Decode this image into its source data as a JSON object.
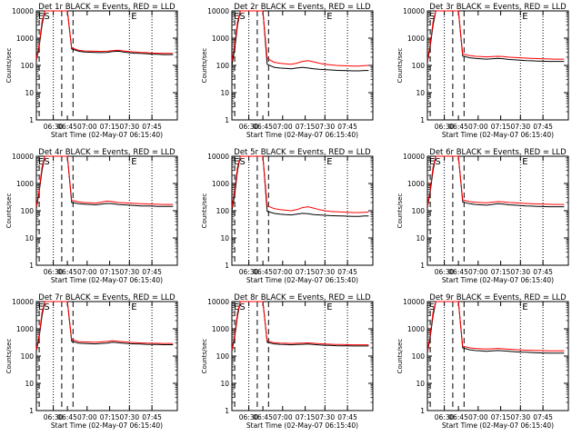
{
  "figure": {
    "panel_title_suffix": "BLACK = Events, RED = LLD",
    "xlabel": "Start Time (02-May-07 06:15:40)",
    "ylabel": "Counts/sec",
    "x_ticks": [
      "06:30",
      "06:45",
      "07:00",
      "07:15",
      "07:30",
      "07:45"
    ],
    "y_ticks": [
      "1",
      "10",
      "100",
      "1000",
      "10000"
    ],
    "marker_s": "S",
    "marker_e": "E",
    "marker_es": "ES",
    "colors": {
      "events": "#000000",
      "lld": "#ff0000",
      "axes": "#000000",
      "background": "#ffffff"
    }
  },
  "chart_data": [
    {
      "type": "line",
      "title": "Det 1r BLACK = Events, RED = LLD",
      "label": "Det 1r",
      "ylim": [
        1,
        10000
      ],
      "yscale": "log",
      "markers": "ES",
      "x": [
        0,
        2,
        4,
        6,
        8,
        10,
        14,
        18,
        22,
        25,
        30,
        34,
        38,
        42,
        46,
        50,
        54,
        58,
        62,
        66,
        70,
        74,
        78,
        82,
        86,
        90,
        94,
        97
      ],
      "series": [
        {
          "name": "Events",
          "values": [
            150,
            500,
            3000,
            10000,
            10000,
            10000,
            10000,
            10000,
            10000,
            400,
            330,
            310,
            305,
            300,
            295,
            300,
            320,
            330,
            310,
            290,
            280,
            275,
            270,
            260,
            255,
            250,
            250,
            250
          ]
        },
        {
          "name": "LLD",
          "values": [
            170,
            600,
            4000,
            10000,
            10000,
            10000,
            10000,
            10000,
            10000,
            440,
            360,
            340,
            335,
            330,
            325,
            330,
            350,
            360,
            340,
            320,
            310,
            300,
            295,
            285,
            280,
            275,
            275,
            275
          ]
        }
      ]
    },
    {
      "type": "line",
      "title": "Det 2r BLACK = Events, RED = LLD",
      "label": "Det 2r",
      "ylim": [
        1,
        10000
      ],
      "yscale": "log",
      "markers": "ES",
      "x": [
        0,
        2,
        4,
        6,
        8,
        10,
        14,
        18,
        22,
        25,
        30,
        34,
        38,
        42,
        46,
        50,
        54,
        58,
        62,
        66,
        70,
        74,
        78,
        82,
        86,
        90,
        94,
        97
      ],
      "series": [
        {
          "name": "Events",
          "values": [
            100,
            400,
            3000,
            10000,
            10000,
            10000,
            10000,
            10000,
            10000,
            110,
            85,
            80,
            78,
            75,
            80,
            85,
            80,
            75,
            72,
            70,
            68,
            66,
            65,
            64,
            63,
            63,
            65,
            65
          ]
        },
        {
          "name": "LLD",
          "values": [
            140,
            600,
            4000,
            10000,
            10000,
            10000,
            10000,
            10000,
            10000,
            180,
            130,
            120,
            115,
            110,
            120,
            140,
            150,
            135,
            120,
            110,
            105,
            100,
            98,
            96,
            95,
            95,
            98,
            100
          ]
        }
      ]
    },
    {
      "type": "line",
      "title": "Det 3r BLACK = Events, RED = LLD",
      "label": "Det 3r",
      "ylim": [
        1,
        10000
      ],
      "yscale": "log",
      "markers": "S",
      "x": [
        0,
        2,
        4,
        6,
        8,
        10,
        14,
        18,
        22,
        25,
        30,
        34,
        38,
        42,
        46,
        50,
        54,
        58,
        62,
        66,
        70,
        74,
        78,
        82,
        86,
        90,
        94,
        97
      ],
      "series": [
        {
          "name": "Events",
          "values": [
            130,
            500,
            3000,
            10000,
            10000,
            10000,
            10000,
            10000,
            10000,
            220,
            190,
            180,
            175,
            170,
            175,
            180,
            175,
            165,
            160,
            155,
            150,
            148,
            145,
            142,
            140,
            140,
            140,
            140
          ]
        },
        {
          "name": "LLD",
          "values": [
            150,
            600,
            4000,
            10000,
            10000,
            10000,
            10000,
            10000,
            10000,
            260,
            230,
            215,
            210,
            205,
            210,
            215,
            210,
            200,
            195,
            190,
            185,
            180,
            178,
            175,
            172,
            170,
            170,
            170
          ]
        }
      ]
    },
    {
      "type": "line",
      "title": "Det 4r BLACK = Events, RED = LLD",
      "label": "Det 4r",
      "ylim": [
        1,
        10000
      ],
      "yscale": "log",
      "markers": "ES",
      "x": [
        0,
        2,
        4,
        6,
        8,
        10,
        14,
        18,
        22,
        25,
        30,
        34,
        38,
        42,
        46,
        50,
        54,
        58,
        62,
        66,
        70,
        74,
        78,
        82,
        86,
        90,
        94,
        97
      ],
      "series": [
        {
          "name": "Events",
          "values": [
            120,
            500,
            3000,
            10000,
            10000,
            10000,
            10000,
            10000,
            10000,
            200,
            180,
            175,
            170,
            165,
            175,
            185,
            180,
            170,
            165,
            160,
            155,
            150,
            150,
            148,
            145,
            145,
            145,
            145
          ]
        },
        {
          "name": "LLD",
          "values": [
            140,
            600,
            4000,
            10000,
            10000,
            10000,
            10000,
            10000,
            10000,
            240,
            210,
            200,
            195,
            190,
            205,
            225,
            215,
            200,
            195,
            190,
            185,
            180,
            178,
            175,
            172,
            170,
            170,
            170
          ]
        }
      ]
    },
    {
      "type": "line",
      "title": "Det 5r BLACK = Events, RED = LLD",
      "label": "Det 5r",
      "ylim": [
        1,
        10000
      ],
      "yscale": "log",
      "markers": "ES",
      "x": [
        0,
        2,
        4,
        6,
        8,
        10,
        14,
        18,
        22,
        25,
        30,
        34,
        38,
        42,
        46,
        50,
        54,
        58,
        62,
        66,
        70,
        74,
        78,
        82,
        86,
        90,
        94,
        97
      ],
      "series": [
        {
          "name": "Events",
          "values": [
            100,
            400,
            3000,
            10000,
            10000,
            10000,
            10000,
            10000,
            10000,
            95,
            80,
            75,
            72,
            70,
            75,
            80,
            78,
            72,
            70,
            68,
            66,
            65,
            64,
            63,
            62,
            62,
            64,
            64
          ]
        },
        {
          "name": "LLD",
          "values": [
            130,
            600,
            4000,
            10000,
            10000,
            10000,
            10000,
            10000,
            10000,
            150,
            120,
            110,
            105,
            100,
            110,
            130,
            140,
            125,
            110,
            100,
            95,
            92,
            90,
            88,
            86,
            86,
            88,
            90
          ]
        }
      ]
    },
    {
      "type": "line",
      "title": "Det 6r BLACK = Events, RED = LLD",
      "label": "Det 6r",
      "ylim": [
        1,
        10000
      ],
      "yscale": "log",
      "markers": "ES",
      "x": [
        0,
        2,
        4,
        6,
        8,
        10,
        14,
        18,
        22,
        25,
        30,
        34,
        38,
        42,
        46,
        50,
        54,
        58,
        62,
        66,
        70,
        74,
        78,
        82,
        86,
        90,
        94,
        97
      ],
      "series": [
        {
          "name": "Events",
          "values": [
            130,
            500,
            3000,
            10000,
            10000,
            10000,
            10000,
            10000,
            10000,
            210,
            180,
            170,
            165,
            160,
            170,
            180,
            175,
            165,
            160,
            155,
            150,
            148,
            145,
            142,
            140,
            140,
            140,
            140
          ]
        },
        {
          "name": "LLD",
          "values": [
            150,
            600,
            4000,
            10000,
            10000,
            10000,
            10000,
            10000,
            10000,
            250,
            215,
            205,
            200,
            195,
            205,
            215,
            210,
            200,
            195,
            190,
            185,
            180,
            178,
            175,
            172,
            170,
            170,
            170
          ]
        }
      ]
    },
    {
      "type": "line",
      "title": "Det 7r BLACK = Events, RED = LLD",
      "label": "Det 7r",
      "ylim": [
        1,
        10000
      ],
      "yscale": "log",
      "markers": "ES",
      "x": [
        0,
        2,
        4,
        6,
        8,
        10,
        14,
        18,
        22,
        25,
        30,
        34,
        38,
        42,
        46,
        50,
        54,
        58,
        62,
        66,
        70,
        74,
        78,
        82,
        86,
        90,
        94,
        97
      ],
      "series": [
        {
          "name": "Events",
          "values": [
            150,
            500,
            3000,
            10000,
            10000,
            10000,
            10000,
            10000,
            10000,
            350,
            300,
            290,
            285,
            280,
            290,
            300,
            320,
            310,
            295,
            285,
            280,
            275,
            270,
            268,
            265,
            262,
            262,
            262
          ]
        },
        {
          "name": "LLD",
          "values": [
            170,
            600,
            4000,
            10000,
            10000,
            10000,
            10000,
            10000,
            10000,
            400,
            340,
            330,
            325,
            320,
            330,
            345,
            365,
            350,
            335,
            320,
            312,
            305,
            300,
            296,
            292,
            290,
            290,
            290
          ]
        }
      ]
    },
    {
      "type": "line",
      "title": "Det 8r BLACK = Events, RED = LLD",
      "label": "Det 8r",
      "ylim": [
        1,
        10000
      ],
      "yscale": "log",
      "markers": "ES",
      "x": [
        0,
        2,
        4,
        6,
        8,
        10,
        14,
        18,
        22,
        25,
        30,
        34,
        38,
        42,
        46,
        50,
        54,
        58,
        62,
        66,
        70,
        74,
        78,
        82,
        86,
        90,
        94,
        97
      ],
      "series": [
        {
          "name": "Events",
          "values": [
            150,
            500,
            3000,
            10000,
            10000,
            10000,
            10000,
            10000,
            10000,
            320,
            280,
            270,
            265,
            260,
            265,
            270,
            275,
            265,
            255,
            250,
            245,
            240,
            238,
            236,
            235,
            235,
            235,
            235
          ]
        },
        {
          "name": "LLD",
          "values": [
            170,
            600,
            4000,
            10000,
            10000,
            10000,
            10000,
            10000,
            10000,
            360,
            310,
            300,
            295,
            290,
            295,
            300,
            305,
            295,
            285,
            278,
            272,
            268,
            265,
            262,
            260,
            260,
            260,
            260
          ]
        }
      ]
    },
    {
      "type": "line",
      "title": "Det 9r BLACK = Events, RED = LLD",
      "label": "Det 9r",
      "ylim": [
        1,
        10000
      ],
      "yscale": "log",
      "markers": "S",
      "x": [
        0,
        2,
        4,
        6,
        8,
        10,
        14,
        18,
        22,
        25,
        30,
        34,
        38,
        42,
        46,
        50,
        54,
        58,
        62,
        66,
        70,
        74,
        78,
        82,
        86,
        90,
        94,
        97
      ],
      "series": [
        {
          "name": "Events",
          "values": [
            130,
            500,
            3000,
            10000,
            10000,
            10000,
            10000,
            10000,
            10000,
            200,
            170,
            160,
            155,
            150,
            155,
            160,
            155,
            150,
            145,
            140,
            138,
            135,
            132,
            130,
            128,
            128,
            128,
            128
          ]
        },
        {
          "name": "LLD",
          "values": [
            150,
            600,
            4000,
            10000,
            10000,
            10000,
            10000,
            10000,
            10000,
            230,
            200,
            190,
            185,
            180,
            185,
            190,
            185,
            178,
            172,
            168,
            165,
            162,
            160,
            158,
            156,
            155,
            155,
            155
          ]
        }
      ]
    }
  ]
}
